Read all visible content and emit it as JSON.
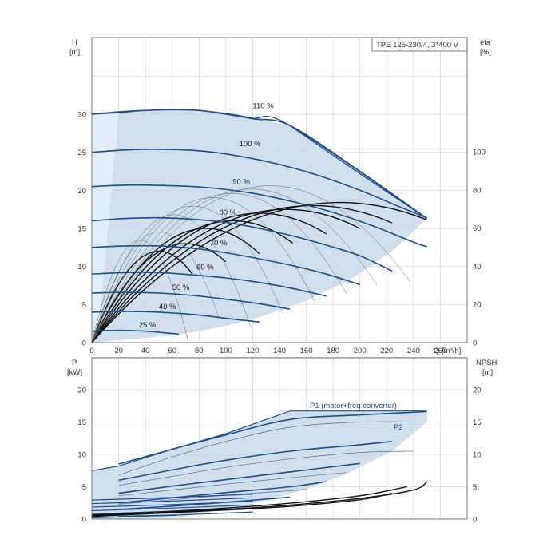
{
  "chart_data": [
    {
      "type": "line",
      "title": "TPE 125-230/4, 3*400 V",
      "xlabel": "Q [m³/h]",
      "ylabel_left": {
        "name": "H",
        "unit": "[m]"
      },
      "ylabel_right": {
        "name": "eta",
        "unit": "[%]"
      },
      "xlim": [
        0,
        280
      ],
      "ylim_left": [
        0,
        35
      ],
      "ylim_right": [
        0,
        140
      ],
      "x_ticks": [
        "0",
        "20",
        "40",
        "60",
        "80",
        "100",
        "120",
        "140",
        "160",
        "180",
        "200",
        "220",
        "240",
        "260"
      ],
      "y_ticks_left": [
        "0",
        "5",
        "10",
        "15",
        "20",
        "25",
        "30"
      ],
      "y_ticks_right": [
        "0",
        "20",
        "40",
        "60",
        "80",
        "100"
      ],
      "colors": {
        "curve": "#1c4f8c",
        "envelope_fill": "#c9d8e8",
        "edge_fill": "#e3edf7",
        "eta_curve": "#111111",
        "grid": "#d4d4d4"
      },
      "grid": true,
      "envelope": {
        "top": [
          [
            0,
            30.0
          ],
          [
            20,
            30.2
          ],
          [
            40,
            30.5
          ],
          [
            60,
            30.6
          ],
          [
            80,
            30.5
          ],
          [
            100,
            30.1
          ],
          [
            120,
            29.5
          ],
          [
            148,
            28.5
          ],
          [
            250,
            16.3
          ]
        ],
        "bottom": [
          [
            250,
            16.3
          ],
          [
            224,
            12.0
          ],
          [
            190,
            8.0
          ],
          [
            160,
            5.5
          ],
          [
            128,
            3.5
          ],
          [
            100,
            2.2
          ],
          [
            80,
            1.5
          ],
          [
            63,
            1.0
          ],
          [
            0,
            0
          ]
        ]
      },
      "edge_band": {
        "x_end_top": 20,
        "x_end_bottom": 5
      },
      "series": [
        {
          "name": "110 %",
          "points": [
            [
              0,
              30.0
            ],
            [
              20,
              30.3
            ],
            [
              40,
              30.5
            ],
            [
              60,
              30.6
            ],
            [
              80,
              30.5
            ],
            [
              100,
              30.0
            ],
            [
              120,
              29.4
            ],
            [
              148,
              28.5
            ],
            [
              200,
              22.5
            ],
            [
              250,
              16.3
            ]
          ]
        },
        {
          "name": "100 %",
          "points": [
            [
              0,
              25.0
            ],
            [
              25,
              25.3
            ],
            [
              50,
              25.4
            ],
            [
              80,
              25.2
            ],
            [
              110,
              24.5
            ],
            [
              140,
              23.4
            ],
            [
              170,
              21.9
            ],
            [
              200,
              20.0
            ],
            [
              230,
              17.8
            ],
            [
              250,
              16.4
            ]
          ]
        },
        {
          "name": "90 %",
          "points": [
            [
              0,
              20.5
            ],
            [
              30,
              20.7
            ],
            [
              60,
              20.6
            ],
            [
              90,
              20.3
            ],
            [
              120,
              19.6
            ],
            [
              150,
              18.5
            ],
            [
              180,
              17.1
            ],
            [
              210,
              15.3
            ],
            [
              240,
              13.2
            ],
            [
              250,
              12.6
            ]
          ]
        },
        {
          "name": "80 %",
          "points": [
            [
              0,
              16.0
            ],
            [
              25,
              16.3
            ],
            [
              50,
              16.4
            ],
            [
              75,
              16.2
            ],
            [
              100,
              15.8
            ],
            [
              125,
              15.0
            ],
            [
              150,
              14.0
            ],
            [
              175,
              12.8
            ],
            [
              200,
              11.4
            ],
            [
              224,
              9.4
            ]
          ]
        },
        {
          "name": "70 %",
          "points": [
            [
              0,
              12.5
            ],
            [
              25,
              12.7
            ],
            [
              50,
              12.7
            ],
            [
              75,
              12.4
            ],
            [
              100,
              11.8
            ],
            [
              125,
              11.0
            ],
            [
              150,
              10.1
            ],
            [
              175,
              9.0
            ],
            [
              200,
              7.6
            ]
          ]
        },
        {
          "name": "60 %",
          "points": [
            [
              0,
              9.0
            ],
            [
              25,
              9.2
            ],
            [
              50,
              9.2
            ],
            [
              75,
              8.9
            ],
            [
              100,
              8.5
            ],
            [
              125,
              7.9
            ],
            [
              150,
              7.1
            ],
            [
              175,
              6.1
            ]
          ]
        },
        {
          "name": "50 %",
          "points": [
            [
              0,
              6.5
            ],
            [
              25,
              6.6
            ],
            [
              50,
              6.5
            ],
            [
              75,
              6.2
            ],
            [
              100,
              5.7
            ],
            [
              125,
              5.1
            ],
            [
              148,
              4.4
            ]
          ]
        },
        {
          "name": "40 %",
          "points": [
            [
              0,
              4.0
            ],
            [
              25,
              4.1
            ],
            [
              50,
              4.0
            ],
            [
              75,
              3.7
            ],
            [
              100,
              3.2
            ],
            [
              125,
              2.7
            ]
          ]
        },
        {
          "name": "25 %",
          "points": [
            [
              0,
              1.5
            ],
            [
              20,
              1.6
            ],
            [
              40,
              1.5
            ],
            [
              60,
              1.2
            ],
            [
              65,
              1.1
            ]
          ]
        }
      ],
      "eta_curves": [
        {
          "peak_x": 50,
          "peak_y": 12.0,
          "end_x": 75
        },
        {
          "peak_x": 70,
          "peak_y": 13.0,
          "end_x": 100
        },
        {
          "peak_x": 85,
          "peak_y": 15.0,
          "end_x": 125
        },
        {
          "peak_x": 105,
          "peak_y": 16.0,
          "end_x": 150
        },
        {
          "peak_x": 125,
          "peak_y": 17.0,
          "end_x": 175
        },
        {
          "peak_x": 145,
          "peak_y": 17.5,
          "end_x": 200
        },
        {
          "peak_x": 165,
          "peak_y": 18.0,
          "end_x": 224
        },
        {
          "peak_x": 185,
          "peak_y": 18.4,
          "end_x": 250
        }
      ]
    },
    {
      "type": "line",
      "xlim": [
        0,
        280
      ],
      "ylabel_left": {
        "name": "P",
        "unit": "[kW]"
      },
      "ylabel_right": {
        "name": "NPSH",
        "unit": "[m]"
      },
      "ylim_left": [
        0,
        25
      ],
      "ylim_right": [
        0,
        25
      ],
      "y_ticks_left": [
        "0",
        "5",
        "10",
        "15",
        "20"
      ],
      "y_ticks_right": [
        "0",
        "5",
        "10",
        "15",
        "20"
      ],
      "grid": true,
      "legend": [
        "P1 (motor+freq.converter)",
        "P2"
      ],
      "envelope": {
        "top": [
          [
            0,
            7.5
          ],
          [
            20,
            8.2
          ],
          [
            60,
            10.8
          ],
          [
            100,
            13.2
          ],
          [
            148,
            16.7
          ],
          [
            180,
            16.7
          ],
          [
            250,
            16.7
          ]
        ],
        "bottom": [
          [
            250,
            15.0
          ],
          [
            224,
            10.5
          ],
          [
            190,
            7.0
          ],
          [
            160,
            4.6
          ],
          [
            128,
            2.8
          ],
          [
            100,
            1.6
          ],
          [
            63,
            0.2
          ],
          [
            0,
            0
          ]
        ]
      },
      "p1_series": [
        {
          "points": [
            [
              20,
              8.5
            ],
            [
              60,
              10.8
            ],
            [
              100,
              13.0
            ],
            [
              148,
              15.4
            ],
            [
              200,
              16.1
            ],
            [
              250,
              16.6
            ]
          ]
        },
        {
          "points": [
            [
              20,
              6.0
            ],
            [
              60,
              7.6
            ],
            [
              100,
              9.1
            ],
            [
              148,
              10.5
            ],
            [
              200,
              11.5
            ],
            [
              224,
              12.0
            ]
          ]
        },
        {
          "points": [
            [
              20,
              4.0
            ],
            [
              60,
              5.1
            ],
            [
              100,
              6.1
            ],
            [
              148,
              7.3
            ],
            [
              200,
              8.6
            ]
          ]
        },
        {
          "points": [
            [
              20,
              2.5
            ],
            [
              60,
              3.3
            ],
            [
              100,
              4.1
            ],
            [
              148,
              5.0
            ],
            [
              175,
              5.8
            ]
          ]
        },
        {
          "points": [
            [
              20,
              1.5
            ],
            [
              60,
              2.0
            ],
            [
              100,
              2.6
            ],
            [
              148,
              3.4
            ]
          ]
        },
        {
          "points": [
            [
              20,
              0.9
            ],
            [
              60,
              1.2
            ],
            [
              100,
              1.5
            ],
            [
              128,
              1.8
            ]
          ]
        },
        {
          "points": [
            [
              20,
              0.4
            ],
            [
              40,
              0.5
            ],
            [
              63,
              0.6
            ]
          ]
        }
      ],
      "p2_series": [
        {
          "points": [
            [
              20,
              6.8
            ],
            [
              60,
              9.6
            ],
            [
              100,
              12.0
            ],
            [
              148,
              14.2
            ],
            [
              200,
              15.0
            ],
            [
              250,
              15.0
            ]
          ]
        },
        {
          "points": [
            [
              20,
              5.2
            ],
            [
              60,
              6.6
            ],
            [
              100,
              8.0
            ],
            [
              148,
              9.3
            ],
            [
              200,
              10.3
            ],
            [
              240,
              10.5
            ]
          ]
        },
        {
          "points": [
            [
              20,
              3.6
            ],
            [
              60,
              4.5
            ],
            [
              100,
              5.4
            ],
            [
              148,
              6.4
            ],
            [
              190,
              7.2
            ]
          ]
        },
        {
          "points": [
            [
              20,
              2.3
            ],
            [
              60,
              3.0
            ],
            [
              100,
              3.7
            ],
            [
              148,
              4.4
            ],
            [
              160,
              4.6
            ]
          ]
        }
      ],
      "npsh_series": [
        {
          "points": [
            [
              0,
              0.5
            ],
            [
              50,
              1.0
            ],
            [
              100,
              1.5
            ],
            [
              150,
              2.2
            ],
            [
              200,
              3.2
            ],
            [
              240,
              4.5
            ],
            [
              250,
              5.8
            ]
          ]
        },
        {
          "points": [
            [
              0,
              0.6
            ],
            [
              50,
              1.1
            ],
            [
              100,
              1.7
            ],
            [
              150,
              2.5
            ],
            [
              200,
              3.6
            ],
            [
              235,
              5.0
            ]
          ]
        },
        {
          "points": [
            [
              0,
              0.4
            ],
            [
              50,
              0.9
            ],
            [
              100,
              1.4
            ],
            [
              150,
              2.0
            ],
            [
              200,
              3.0
            ],
            [
              224,
              4.0
            ]
          ]
        }
      ]
    }
  ]
}
